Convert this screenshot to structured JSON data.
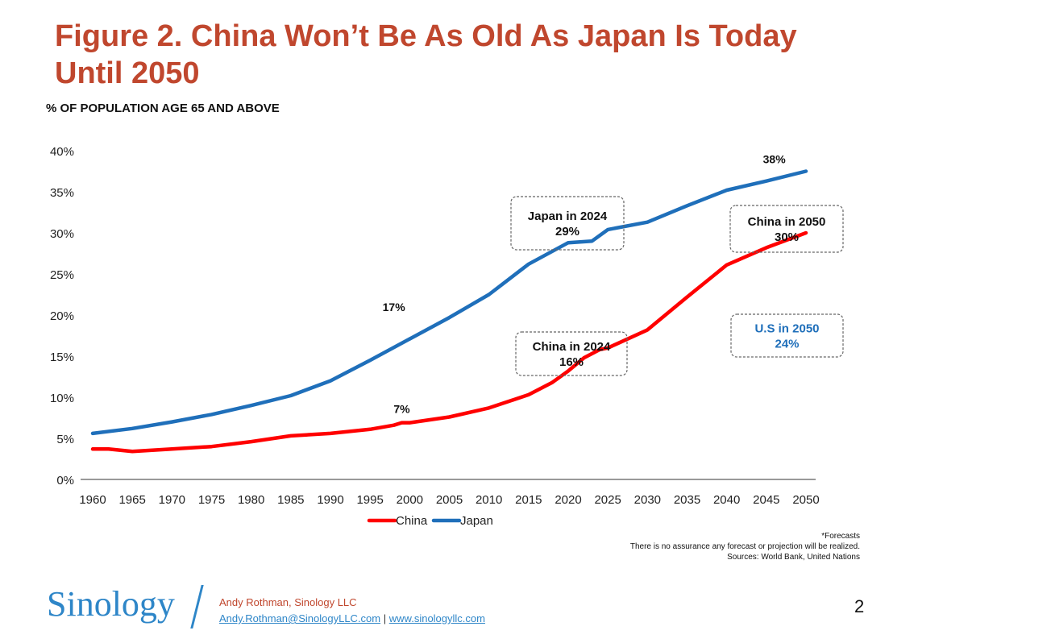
{
  "title_line1": "Figure 2. China Won’t Be As Old As Japan Is Today",
  "title_line2": "Until 2050",
  "chart_data": {
    "type": "line",
    "title": "Figure 2. China Won’t Be As Old As Japan Is Today Until 2050",
    "ylabel": "% OF POPULATION AGE 65 AND ABOVE",
    "xlabel": "",
    "ylim": [
      0,
      40
    ],
    "xlim": [
      1960,
      2050
    ],
    "yticks": [
      "0%",
      "5%",
      "10%",
      "15%",
      "20%",
      "25%",
      "30%",
      "35%",
      "40%"
    ],
    "xticks": [
      "1960",
      "1965",
      "1970",
      "1975",
      "1980",
      "1985",
      "1990",
      "1995",
      "2000",
      "2005",
      "2010",
      "2015",
      "2020",
      "2025",
      "2030",
      "2035",
      "2040",
      "2045",
      "2050"
    ],
    "legend_position": "bottom",
    "series": [
      {
        "name": "China",
        "color": "#ff0000",
        "x": [
          1960,
          1962,
          1965,
          1970,
          1975,
          1980,
          1985,
          1990,
          1995,
          1998,
          1999,
          2000,
          2005,
          2010,
          2015,
          2018,
          2020,
          2022,
          2024,
          2025,
          2030,
          2035,
          2040,
          2045,
          2050
        ],
        "values": [
          3.7,
          3.7,
          3.4,
          3.7,
          4.0,
          4.6,
          5.3,
          5.6,
          6.1,
          6.6,
          6.9,
          6.9,
          7.6,
          8.7,
          10.3,
          11.8,
          13.2,
          14.8,
          15.8,
          16.0,
          18.2,
          22.2,
          26.1,
          28.2,
          30.0
        ]
      },
      {
        "name": "Japan",
        "color": "#1f6fba",
        "x": [
          1960,
          1965,
          1970,
          1975,
          1980,
          1985,
          1990,
          1995,
          2000,
          2005,
          2010,
          2015,
          2020,
          2023,
          2025,
          2030,
          2035,
          2040,
          2045,
          2050
        ],
        "values": [
          5.6,
          6.2,
          7.0,
          7.9,
          9.0,
          10.2,
          12.0,
          14.5,
          17.1,
          19.7,
          22.5,
          26.2,
          28.8,
          29.0,
          30.4,
          31.3,
          33.3,
          35.2,
          36.3,
          37.5
        ]
      }
    ],
    "annotations": [
      {
        "text": "17%",
        "x": 1998,
        "y": 20.5
      },
      {
        "text": "7%",
        "x": 1999,
        "y": 8.1
      },
      {
        "text": "38%",
        "x": 2046,
        "y": 38.5
      }
    ],
    "callouts": [
      {
        "line1": "Japan in 2024",
        "line2": "29%",
        "color": "#111111"
      },
      {
        "line1": "China in 2024",
        "line2": "16%",
        "color": "#111111"
      },
      {
        "line1": "China in 2050",
        "line2": "30%",
        "color": "#111111"
      },
      {
        "line1": "U.S in 2050",
        "line2": "24%",
        "color": "#1f6fba"
      }
    ]
  },
  "notes": {
    "forecasts": "*Forecasts",
    "disclaimer": "There is no assurance any forecast or projection will be realized.",
    "sources": "Sources: World Bank, United Nations"
  },
  "footer": {
    "logo": "Sinology",
    "author": "Andy Rothman, Sinology LLC",
    "email": "Andy.Rothman@SinologyLLC.com",
    "separator": "|",
    "website": "www.sinologyllc.com",
    "page_number": "2"
  }
}
